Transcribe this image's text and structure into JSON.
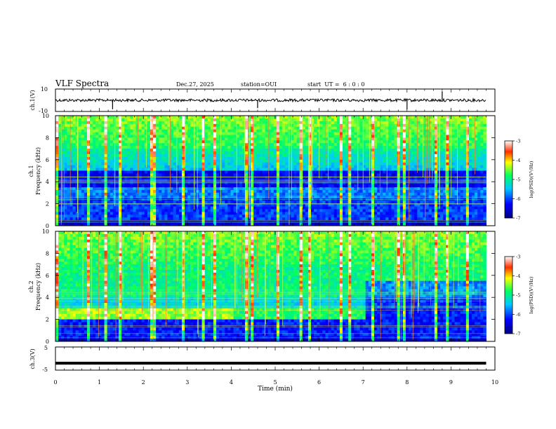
{
  "header": {
    "title": "VLF Spectra",
    "date": "Dec.27, 2025",
    "station": "station=OUI",
    "start": "start  UT =  6 : 0 : 0"
  },
  "chart_data": [
    {
      "type": "line",
      "name": "ch1-waveform",
      "ylabel": "ch.1(V)",
      "ylim": [
        -10,
        10
      ],
      "ytick_labels": [
        "10",
        "-10"
      ],
      "baseline": 0,
      "spikes": [
        {
          "x": 1.3,
          "y": -8
        },
        {
          "x": 4.6,
          "y": -7
        },
        {
          "x": 8.0,
          "y": -8
        },
        {
          "x": 8.8,
          "y": 8
        }
      ]
    },
    {
      "type": "heatmap",
      "name": "ch1-spectrogram",
      "ylabel_line1": "ch.1",
      "ylabel_line2": "Frequency (kHz)",
      "ylim": [
        0,
        10
      ],
      "ytick_labels": [
        "0",
        "2",
        "4",
        "6",
        "8",
        "10"
      ],
      "colorbar": {
        "label": "log(PSD)(V²/Hz)",
        "range": [
          -7,
          -3
        ],
        "tick_labels": [
          "-3",
          "-4",
          "-5",
          "-6",
          "-7"
        ]
      }
    },
    {
      "type": "heatmap",
      "name": "ch2-spectrogram",
      "ylabel_line1": "ch.2",
      "ylabel_line2": "Frequency (kHz)",
      "ylim": [
        0,
        10
      ],
      "ytick_labels": [
        "0",
        "2",
        "4",
        "6",
        "8",
        "10"
      ],
      "colorbar": {
        "label": "log(PSD)(V²/Hz)",
        "range": [
          -7,
          -3
        ],
        "tick_labels": [
          "-3",
          "-4",
          "-5",
          "-6",
          "-7"
        ]
      }
    },
    {
      "type": "line",
      "name": "ch3-waveform",
      "ylabel": "ch.3(V)",
      "ylim": [
        -5,
        5
      ],
      "ytick_labels": [
        "5",
        "-5"
      ],
      "baseline": -2
    }
  ],
  "xaxis": {
    "label": "Time (min)",
    "range": [
      0,
      10
    ],
    "tick_labels": [
      "0",
      "1",
      "2",
      "3",
      "4",
      "5",
      "6",
      "7",
      "8",
      "9",
      "10"
    ],
    "data_end": 9.8
  }
}
